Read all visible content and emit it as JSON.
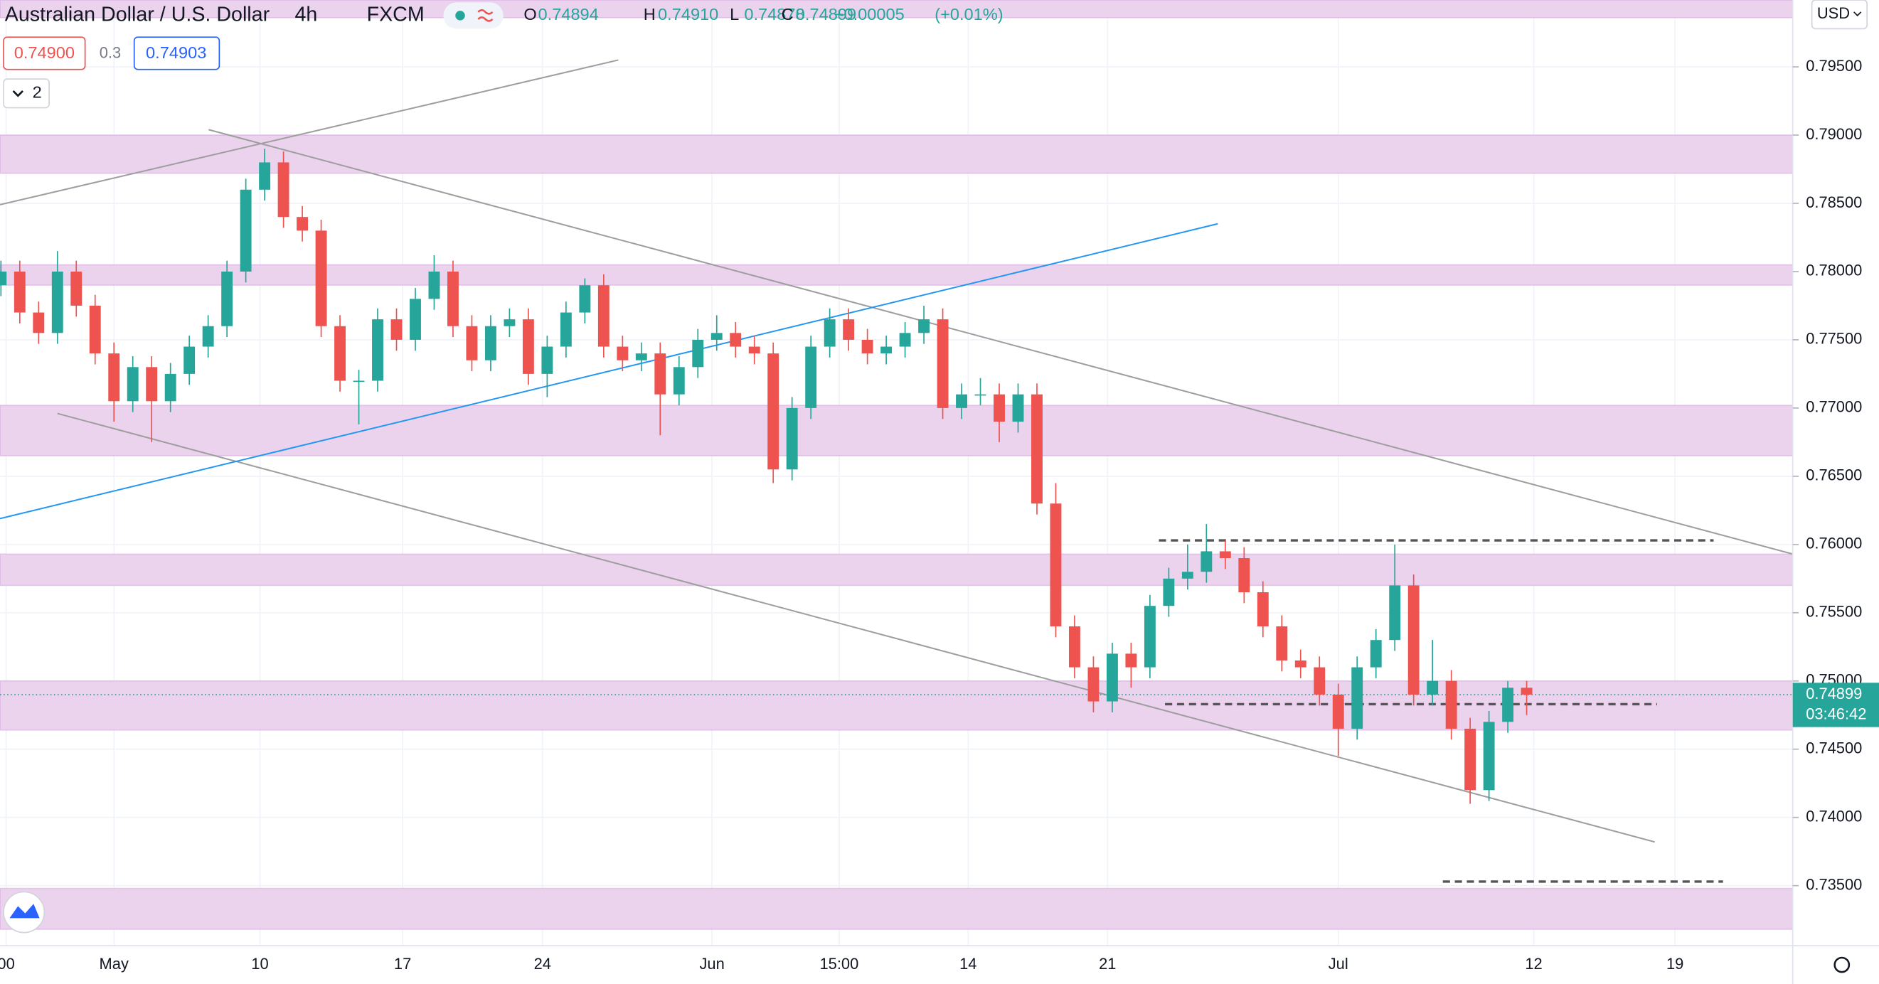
{
  "header": {
    "symbol": "Australian Dollar / U.S. Dollar",
    "interval": "4h",
    "exchange": "FXCM",
    "ohlc": [
      {
        "label": "O",
        "value": "0.74894"
      },
      {
        "label": "H",
        "value": "0.74910"
      },
      {
        "label": "L",
        "value": "0.74878"
      },
      {
        "label": "C",
        "value": "0.74899"
      }
    ],
    "change": "+0.00005",
    "change_pct": "(+0.01%)"
  },
  "toolbar": {
    "sell": "0.74900",
    "spread": "0.3",
    "buy": "0.74903",
    "indicators_count": "2",
    "currency": "USD"
  },
  "chart_data": {
    "type": "candlestick",
    "x": [
      -24,
      -20,
      -16,
      -12,
      -8,
      -4,
      0,
      4,
      8,
      12,
      16,
      20,
      24,
      28,
      32,
      36,
      40,
      44,
      48,
      52,
      56,
      60,
      64,
      68,
      72,
      76,
      80,
      84,
      88,
      92,
      96,
      100,
      104,
      108,
      112,
      116,
      120,
      124,
      128,
      132,
      136,
      140,
      144,
      148,
      152,
      156,
      160,
      164,
      168,
      172,
      176,
      180,
      184,
      188,
      192,
      196,
      200,
      204,
      208,
      212,
      216,
      220,
      224,
      228,
      232,
      236,
      240,
      244,
      248,
      252,
      256,
      260,
      264,
      268,
      272,
      276,
      280,
      284,
      288,
      292,
      296,
      300
    ],
    "open": [
      0.779,
      0.78,
      0.777,
      0.7755,
      0.78,
      0.7775,
      0.774,
      0.7705,
      0.773,
      0.7705,
      0.7725,
      0.7745,
      0.776,
      0.78,
      0.786,
      0.788,
      0.784,
      0.783,
      0.776,
      0.772,
      0.772,
      0.7765,
      0.775,
      0.778,
      0.78,
      0.776,
      0.7735,
      0.776,
      0.7765,
      0.7725,
      0.7745,
      0.777,
      0.779,
      0.7745,
      0.7735,
      0.774,
      0.771,
      0.773,
      0.775,
      0.7755,
      0.7745,
      0.774,
      0.7655,
      0.77,
      0.7745,
      0.7765,
      0.775,
      0.774,
      0.7745,
      0.7755,
      0.7765,
      0.77,
      0.771,
      0.771,
      0.769,
      0.771,
      0.763,
      0.754,
      0.751,
      0.7485,
      0.752,
      0.751,
      0.7555,
      0.7575,
      0.758,
      0.7595,
      0.759,
      0.7565,
      0.754,
      0.7515,
      0.751,
      0.749,
      0.7465,
      0.751,
      0.753,
      0.757,
      0.749,
      0.75,
      0.7465,
      0.742,
      0.747,
      0.7495
    ],
    "high": [
      0.7808,
      0.7808,
      0.7778,
      0.7815,
      0.7808,
      0.7783,
      0.7748,
      0.7738,
      0.7738,
      0.7733,
      0.7753,
      0.7768,
      0.7808,
      0.7868,
      0.789,
      0.7888,
      0.7848,
      0.7838,
      0.7768,
      0.7728,
      0.7773,
      0.7773,
      0.7788,
      0.7812,
      0.7808,
      0.7768,
      0.7768,
      0.7773,
      0.7773,
      0.7753,
      0.7778,
      0.7795,
      0.7798,
      0.7753,
      0.7748,
      0.7748,
      0.7738,
      0.7758,
      0.7768,
      0.7763,
      0.7753,
      0.7748,
      0.7708,
      0.7753,
      0.7773,
      0.7773,
      0.7758,
      0.7753,
      0.7763,
      0.7775,
      0.7773,
      0.7718,
      0.7722,
      0.7718,
      0.7718,
      0.7718,
      0.7645,
      0.7548,
      0.7518,
      0.7528,
      0.7528,
      0.7563,
      0.7583,
      0.76,
      0.7615,
      0.7603,
      0.7598,
      0.7573,
      0.7548,
      0.7523,
      0.7518,
      0.7498,
      0.7518,
      0.7538,
      0.76,
      0.7578,
      0.753,
      0.7508,
      0.7473,
      0.7478,
      0.75,
      0.75
    ],
    "low": [
      0.7782,
      0.7762,
      0.7747,
      0.7747,
      0.7767,
      0.7732,
      0.769,
      0.7697,
      0.7675,
      0.7697,
      0.7717,
      0.7737,
      0.7752,
      0.7792,
      0.7852,
      0.7832,
      0.7822,
      0.7752,
      0.7712,
      0.7688,
      0.7712,
      0.7742,
      0.7742,
      0.7772,
      0.7752,
      0.7727,
      0.7727,
      0.7752,
      0.7717,
      0.7708,
      0.7737,
      0.7762,
      0.7737,
      0.7727,
      0.7727,
      0.768,
      0.7702,
      0.7722,
      0.7742,
      0.7737,
      0.7732,
      0.7645,
      0.7647,
      0.7692,
      0.7737,
      0.7742,
      0.7732,
      0.7732,
      0.7737,
      0.7747,
      0.7692,
      0.7692,
      0.7702,
      0.7675,
      0.7682,
      0.7622,
      0.7532,
      0.7502,
      0.7477,
      0.7477,
      0.7495,
      0.7502,
      0.7547,
      0.7567,
      0.7572,
      0.7582,
      0.7557,
      0.7532,
      0.7507,
      0.7502,
      0.7482,
      0.7445,
      0.7457,
      0.7502,
      0.7522,
      0.7482,
      0.7482,
      0.7457,
      0.741,
      0.7412,
      0.7462,
      0.7475
    ],
    "close": [
      0.78,
      0.777,
      0.7755,
      0.78,
      0.7775,
      0.774,
      0.7705,
      0.773,
      0.7705,
      0.7725,
      0.7745,
      0.776,
      0.78,
      0.786,
      0.788,
      0.784,
      0.783,
      0.776,
      0.772,
      0.772,
      0.7765,
      0.775,
      0.778,
      0.78,
      0.776,
      0.7735,
      0.776,
      0.7765,
      0.7725,
      0.7745,
      0.777,
      0.779,
      0.7745,
      0.7735,
      0.774,
      0.771,
      0.773,
      0.775,
      0.7755,
      0.7745,
      0.774,
      0.7655,
      0.77,
      0.7745,
      0.7765,
      0.775,
      0.774,
      0.7745,
      0.7755,
      0.7765,
      0.77,
      0.771,
      0.771,
      0.769,
      0.771,
      0.763,
      0.754,
      0.751,
      0.7485,
      0.752,
      0.751,
      0.7555,
      0.7575,
      0.758,
      0.7595,
      0.759,
      0.7565,
      0.754,
      0.7515,
      0.751,
      0.749,
      0.7465,
      0.751,
      0.753,
      0.757,
      0.749,
      0.75,
      0.7465,
      0.742,
      0.747,
      0.7495,
      0.749
    ],
    "up_color": "#26a69a",
    "down_color": "#ef5350",
    "xlim": [
      -24.2,
      356.5
    ],
    "ylim": [
      0.7306,
      0.7999
    ],
    "grid": true,
    "xticks": [
      {
        "value": -22.9,
        "label": "00"
      },
      {
        "value": 0,
        "label": "May"
      },
      {
        "value": 31,
        "label": "10"
      },
      {
        "value": 61.3,
        "label": "17"
      },
      {
        "value": 91,
        "label": "24"
      },
      {
        "value": 127,
        "label": "Jun"
      },
      {
        "value": 154,
        "label": "15:00"
      },
      {
        "value": 181.4,
        "label": "14"
      },
      {
        "value": 211,
        "label": "21"
      },
      {
        "value": 260,
        "label": "Jul"
      },
      {
        "value": 301.5,
        "label": "12"
      },
      {
        "value": 331.5,
        "label": "19"
      }
    ],
    "yticks": [
      {
        "value": 0.735,
        "label": "0.73500"
      },
      {
        "value": 0.74,
        "label": "0.74000"
      },
      {
        "value": 0.745,
        "label": "0.74500"
      },
      {
        "value": 0.75,
        "label": "0.75000"
      },
      {
        "value": 0.755,
        "label": "0.75500"
      },
      {
        "value": 0.76,
        "label": "0.76000"
      },
      {
        "value": 0.765,
        "label": "0.76500"
      },
      {
        "value": 0.77,
        "label": "0.77000"
      },
      {
        "value": 0.775,
        "label": "0.77500"
      },
      {
        "value": 0.78,
        "label": "0.78000"
      },
      {
        "value": 0.785,
        "label": "0.78500"
      },
      {
        "value": 0.79,
        "label": "0.79000"
      },
      {
        "value": 0.795,
        "label": "0.79500"
      }
    ],
    "zones": [
      [
        0.7986,
        0.7999
      ],
      [
        0.7872,
        0.79
      ],
      [
        0.779,
        0.7805
      ],
      [
        0.7665,
        0.7702
      ],
      [
        0.757,
        0.7593
      ],
      [
        0.7464,
        0.75
      ],
      [
        0.7318,
        0.7348
      ]
    ],
    "zone_color": "#ebd3ee",
    "trend_lines": [
      {
        "x": [
          -24.2,
          107.1
        ],
        "y": [
          0.7849,
          0.7955
        ],
        "color": "#9e9e9e",
        "dashed": false
      },
      {
        "x": [
          20.1,
          356.5
        ],
        "y": [
          0.7904,
          0.7593
        ],
        "color": "#9e9e9e",
        "dashed": false
      },
      {
        "x": [
          -12,
          327.2
        ],
        "y": [
          0.7696,
          0.7382
        ],
        "color": "#9e9e9e",
        "dashed": false
      },
      {
        "x": [
          -24.2,
          234.4
        ],
        "y": [
          0.7619,
          0.7835
        ],
        "color": "#2196f3",
        "dashed": false
      },
      {
        "x": [
          221.9,
          339.7
        ],
        "y": [
          0.7603,
          0.7603
        ],
        "color": "#555555",
        "dashed": true
      },
      {
        "x": [
          223.2,
          327.7
        ],
        "y": [
          0.7483,
          0.7483
        ],
        "color": "#555555",
        "dashed": true
      },
      {
        "x": [
          282.2,
          341.7
        ],
        "y": [
          0.7353,
          0.7353
        ],
        "color": "#555555",
        "dashed": true
      }
    ],
    "last_price": 0.74899,
    "countdown": "03:46:42"
  }
}
